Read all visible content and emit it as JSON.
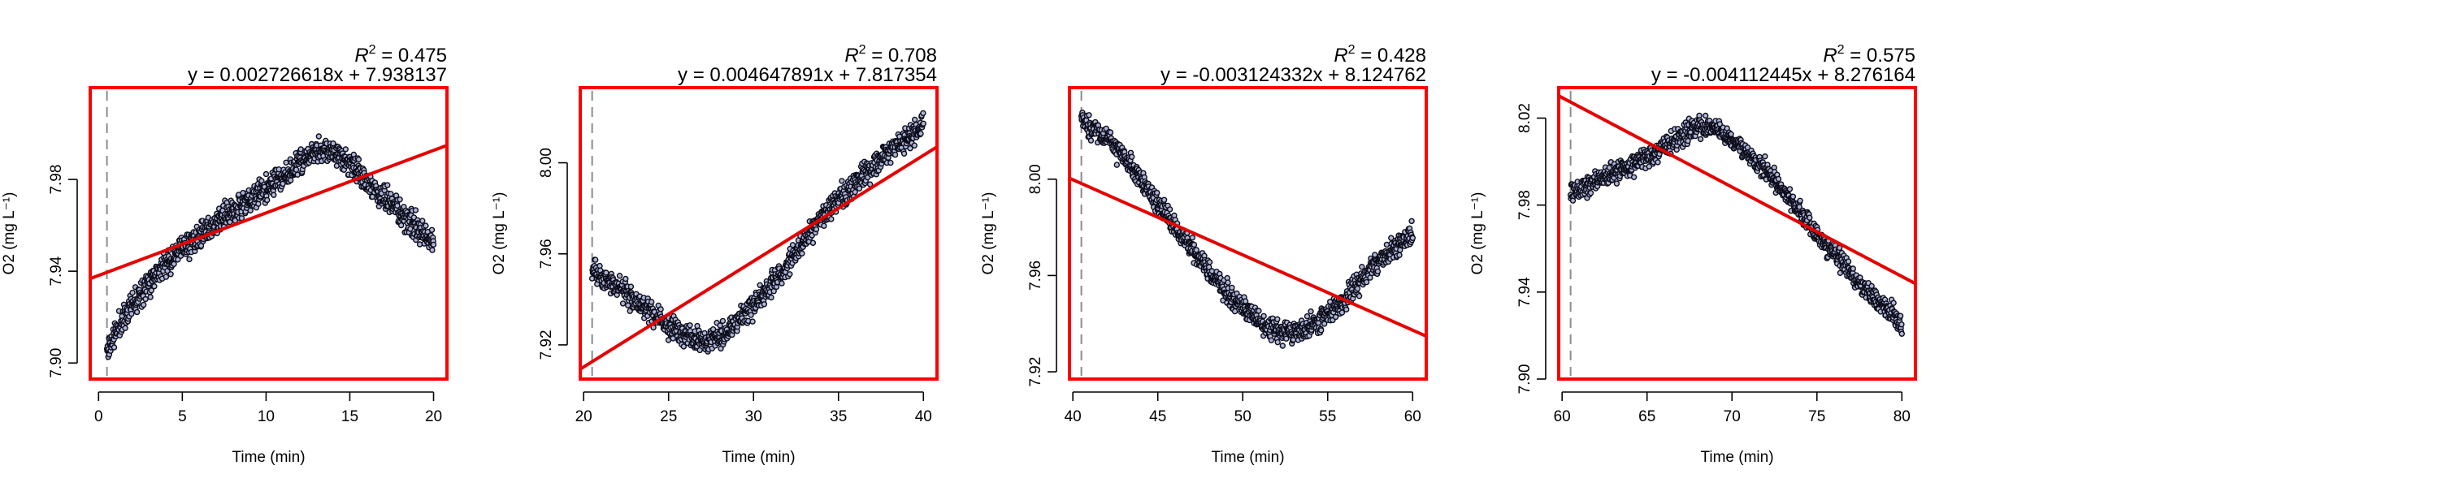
{
  "chart_data": [
    {
      "type": "scatter",
      "r2_label": "R",
      "r2_sup": "2",
      "r2_value": " = 0.475",
      "equation": "y = 0.002726618x + 7.938137",
      "xlabel": "Time (min)",
      "ylabel": "O2 (mg L⁻¹)",
      "xlim": [
        -0.5,
        20.8
      ],
      "ylim": [
        7.893,
        8.02
      ],
      "xticks": [
        0,
        5,
        10,
        15,
        20
      ],
      "yticks": [
        7.9,
        7.94,
        7.98
      ],
      "ytick_labels": [
        "7.90",
        "7.94",
        "7.98"
      ],
      "vline_x": 0.5,
      "fit": {
        "slope": 0.002726618,
        "intercept": 7.938137
      },
      "trend_points": [
        [
          0.5,
          7.905
        ],
        [
          1,
          7.913
        ],
        [
          2,
          7.926
        ],
        [
          3,
          7.936
        ],
        [
          4,
          7.943
        ],
        [
          5,
          7.95
        ],
        [
          6,
          7.955
        ],
        [
          7,
          7.961
        ],
        [
          8,
          7.966
        ],
        [
          9,
          7.971
        ],
        [
          10,
          7.976
        ],
        [
          11,
          7.981
        ],
        [
          12,
          7.987
        ],
        [
          13,
          7.992
        ],
        [
          14,
          7.993
        ],
        [
          15,
          7.987
        ],
        [
          16,
          7.979
        ],
        [
          17,
          7.972
        ],
        [
          18,
          7.966
        ],
        [
          19,
          7.958
        ],
        [
          20,
          7.952
        ]
      ],
      "noise": 0.0055,
      "n_points": 1000,
      "seed": 11
    },
    {
      "type": "scatter",
      "r2_label": "R",
      "r2_sup": "2",
      "r2_value": " = 0.708",
      "equation": "y = 0.004647891x + 7.817354",
      "xlabel": "Time (min)",
      "ylabel": "O2 (mg L⁻¹)",
      "xlim": [
        19.8,
        40.8
      ],
      "ylim": [
        7.905,
        8.033
      ],
      "xticks": [
        20,
        25,
        30,
        35,
        40
      ],
      "yticks": [
        7.92,
        7.96,
        8.0
      ],
      "ytick_labels": [
        "7.92",
        "7.96",
        "8.00"
      ],
      "vline_x": 20.5,
      "fit": {
        "slope": 0.004647891,
        "intercept": 7.817354
      },
      "trend_points": [
        [
          20.5,
          7.953
        ],
        [
          21,
          7.95
        ],
        [
          22,
          7.946
        ],
        [
          23,
          7.94
        ],
        [
          24,
          7.934
        ],
        [
          25,
          7.928
        ],
        [
          26,
          7.924
        ],
        [
          27,
          7.922
        ],
        [
          28,
          7.924
        ],
        [
          29,
          7.93
        ],
        [
          30,
          7.938
        ],
        [
          31,
          7.946
        ],
        [
          32,
          7.955
        ],
        [
          33,
          7.966
        ],
        [
          34,
          7.976
        ],
        [
          35,
          7.984
        ],
        [
          36,
          7.991
        ],
        [
          37,
          7.998
        ],
        [
          38,
          8.005
        ],
        [
          39,
          8.01
        ],
        [
          40,
          8.016
        ]
      ],
      "noise": 0.005,
      "n_points": 1000,
      "seed": 23
    },
    {
      "type": "scatter",
      "r2_label": "R",
      "r2_sup": "2",
      "r2_value": " = 0.428",
      "equation": "y = -0.003124332x + 8.124762",
      "xlabel": "Time (min)",
      "ylabel": "O2 (mg L⁻¹)",
      "xlim": [
        39.8,
        60.8
      ],
      "ylim": [
        7.917,
        8.038
      ],
      "xticks": [
        40,
        45,
        50,
        55,
        60
      ],
      "yticks": [
        7.92,
        7.96,
        8.0
      ],
      "ytick_labels": [
        "7.92",
        "7.96",
        "8.00"
      ],
      "vline_x": 40.5,
      "fit": {
        "slope": -0.003124332,
        "intercept": 8.124762
      },
      "trend_points": [
        [
          40.5,
          8.025
        ],
        [
          41,
          8.022
        ],
        [
          42,
          8.017
        ],
        [
          43,
          8.009
        ],
        [
          44,
          8.0
        ],
        [
          45,
          7.99
        ],
        [
          46,
          7.98
        ],
        [
          47,
          7.971
        ],
        [
          48,
          7.962
        ],
        [
          49,
          7.954
        ],
        [
          50,
          7.947
        ],
        [
          51,
          7.941
        ],
        [
          52,
          7.937
        ],
        [
          53,
          7.936
        ],
        [
          54,
          7.939
        ],
        [
          55,
          7.944
        ],
        [
          56,
          7.95
        ],
        [
          57,
          7.958
        ],
        [
          58,
          7.966
        ],
        [
          59,
          7.972
        ],
        [
          60,
          7.977
        ]
      ],
      "noise": 0.0045,
      "n_points": 1000,
      "seed": 37
    },
    {
      "type": "scatter",
      "r2_label": "R",
      "r2_sup": "2",
      "r2_value": " = 0.575",
      "equation": "y = -0.004112445x + 8.276164",
      "xlabel": "Time (min)",
      "ylabel": "O2 (mg L⁻¹)",
      "xlim": [
        59.8,
        80.8
      ],
      "ylim": [
        7.9,
        8.034
      ],
      "xticks": [
        60,
        65,
        70,
        75,
        80
      ],
      "yticks": [
        7.9,
        7.94,
        7.98,
        8.02
      ],
      "ytick_labels": [
        "7.90",
        "7.94",
        "7.98",
        "8.02"
      ],
      "vline_x": 60.5,
      "fit": {
        "slope": -0.004112445,
        "intercept": 8.276164
      },
      "trend_points": [
        [
          60.5,
          7.985
        ],
        [
          61,
          7.988
        ],
        [
          62,
          7.991
        ],
        [
          63,
          7.995
        ],
        [
          64,
          7.998
        ],
        [
          65,
          8.002
        ],
        [
          66,
          8.006
        ],
        [
          67,
          8.012
        ],
        [
          68,
          8.016
        ],
        [
          69,
          8.016
        ],
        [
          70,
          8.01
        ],
        [
          71,
          8.003
        ],
        [
          72,
          7.996
        ],
        [
          73,
          7.987
        ],
        [
          74,
          7.977
        ],
        [
          75,
          7.966
        ],
        [
          76,
          7.957
        ],
        [
          77,
          7.948
        ],
        [
          78,
          7.94
        ],
        [
          79,
          7.933
        ],
        [
          80,
          7.925
        ]
      ],
      "noise": 0.0045,
      "n_points": 1000,
      "seed": 53
    }
  ],
  "colors": {
    "frame": "#ff0000",
    "fit_line": "#e60000",
    "point_stroke": "#0d0d1a",
    "point_fill": "#aeb6d8",
    "vline": "#8c8c8c"
  }
}
